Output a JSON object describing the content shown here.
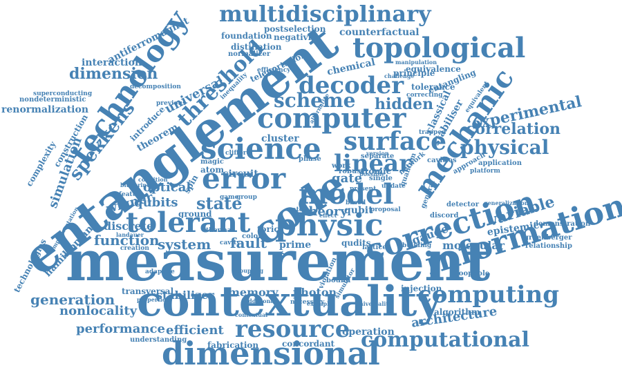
{
  "color": "#4682b4",
  "words": [
    {
      "id": "measurement",
      "text": "measurement"
    },
    {
      "id": "entanglement",
      "text": "entanglement"
    },
    {
      "id": "contextuality",
      "text": "contextuality"
    },
    {
      "id": "dimensional",
      "text": "dimensional"
    },
    {
      "id": "information",
      "text": "information"
    },
    {
      "id": "correction",
      "text": "correction"
    },
    {
      "id": "technology",
      "text": "technology"
    },
    {
      "id": "multidisciplinary",
      "text": "multidisciplinary"
    },
    {
      "id": "topological",
      "text": "topological"
    },
    {
      "id": "computer",
      "text": "computer"
    },
    {
      "id": "science",
      "text": "science"
    },
    {
      "id": "code",
      "text": "code"
    },
    {
      "id": "physic",
      "text": "physic"
    },
    {
      "id": "error",
      "text": "error"
    },
    {
      "id": "model",
      "text": "model"
    },
    {
      "id": "tolerant",
      "text": "tolerant"
    },
    {
      "id": "resource",
      "text": "resource"
    },
    {
      "id": "computing",
      "text": "computing"
    },
    {
      "id": "computational",
      "text": "computational"
    },
    {
      "id": "mechanic",
      "text": "mechanic"
    },
    {
      "id": "surface",
      "text": "surface"
    },
    {
      "id": "linear",
      "text": "linear"
    },
    {
      "id": "physical",
      "text": "physical"
    },
    {
      "id": "decoder",
      "text": "decoder"
    },
    {
      "id": "scheme",
      "text": "scheme"
    },
    {
      "id": "threshold",
      "text": "threshold"
    },
    {
      "id": "spekkens",
      "text": "spekkens"
    },
    {
      "id": "experimental",
      "text": "experimental"
    },
    {
      "id": "correlation",
      "text": "correlation"
    },
    {
      "id": "variable",
      "text": "variable"
    },
    {
      "id": "dimension",
      "text": "dimension"
    },
    {
      "id": "simulation",
      "text": "simulation"
    },
    {
      "id": "renormalization",
      "text": "renormalization"
    },
    {
      "id": "interaction",
      "text": "interaction"
    },
    {
      "id": "antiferromagnet",
      "text": "antiferromagnet"
    },
    {
      "id": "universal",
      "text": "universal"
    },
    {
      "id": "hidden",
      "text": "hidden"
    },
    {
      "id": "state",
      "text": "state"
    },
    {
      "id": "qubits",
      "text": "qubits"
    },
    {
      "id": "optical",
      "text": "optical"
    },
    {
      "id": "wigner",
      "text": "wigner"
    },
    {
      "id": "function",
      "text": "function"
    },
    {
      "id": "system",
      "text": "system"
    },
    {
      "id": "generation",
      "text": "generation"
    },
    {
      "id": "nonlocality",
      "text": "nonlocality"
    },
    {
      "id": "performance",
      "text": "performance"
    },
    {
      "id": "efficient",
      "text": "efficient"
    },
    {
      "id": "architecture",
      "text": "architecture"
    },
    {
      "id": "stabilizer",
      "text": "stabilizer"
    },
    {
      "id": "memory",
      "text": "memory"
    },
    {
      "id": "photon",
      "text": "photon"
    },
    {
      "id": "fault",
      "text": "fault"
    },
    {
      "id": "theory",
      "text": "theory"
    },
    {
      "id": "gate",
      "text": "gate"
    },
    {
      "id": "gauge",
      "text": "gauge"
    },
    {
      "id": "molecular",
      "text": "molecular"
    },
    {
      "id": "epistemic",
      "text": "epistemic"
    },
    {
      "id": "hamiltonian",
      "text": "hamiltonian"
    },
    {
      "id": "discrete",
      "text": "discrete"
    },
    {
      "id": "concordant",
      "text": "concordant"
    },
    {
      "id": "operation",
      "text": "operation"
    },
    {
      "id": "fabrication",
      "text": "fabrication"
    },
    {
      "id": "counterfactual",
      "text": "counterfactual"
    },
    {
      "id": "equivalence",
      "text": "equivalence"
    },
    {
      "id": "principle",
      "text": "principle"
    },
    {
      "id": "tolerance",
      "text": "tolerance"
    },
    {
      "id": "chemical",
      "text": "chemical"
    },
    {
      "id": "cluster",
      "text": "cluster"
    },
    {
      "id": "atomic",
      "text": "atomic"
    },
    {
      "id": "circuit",
      "text": "circuit"
    },
    {
      "id": "prime",
      "text": "prime"
    },
    {
      "id": "qubit",
      "text": "qubit"
    },
    {
      "id": "qudits",
      "text": "qudits"
    },
    {
      "id": "construction",
      "text": "construction"
    },
    {
      "id": "complexity",
      "text": "complexity"
    },
    {
      "id": "technologies",
      "text": "technologies"
    },
    {
      "id": "transversal",
      "text": "transversal"
    },
    {
      "id": "negativity",
      "text": "negativity"
    },
    {
      "id": "postselection",
      "text": "postselection"
    },
    {
      "id": "distillation",
      "text": "distillation"
    },
    {
      "id": "foundation",
      "text": "foundation"
    },
    {
      "id": "teleportation",
      "text": "teleportation"
    },
    {
      "id": "entangling",
      "text": "entangling"
    },
    {
      "id": "stabiliser",
      "text": "stabiliser"
    },
    {
      "id": "classical",
      "text": "classical"
    },
    {
      "id": "injection",
      "text": "injection"
    },
    {
      "id": "algorithm",
      "text": "algorithm"
    },
    {
      "id": "demonstration",
      "text": "demonstration"
    },
    {
      "id": "greenberger",
      "text": "greenberger"
    },
    {
      "id": "relationship",
      "text": "relationship"
    },
    {
      "id": "nondeterministic",
      "text": "nondeterministic"
    },
    {
      "id": "superconducting",
      "text": "superconducting"
    },
    {
      "id": "introduce",
      "text": "introduce"
    },
    {
      "id": "theorem",
      "text": "theorem"
    },
    {
      "id": "atom",
      "text": "atom"
    },
    {
      "id": "ground",
      "text": "ground"
    },
    {
      "id": "toric",
      "text": "toric"
    },
    {
      "id": "bound",
      "text": "bound"
    },
    {
      "id": "cavity",
      "text": "cavity"
    },
    {
      "id": "color",
      "text": "color"
    },
    {
      "id": "network",
      "text": "network"
    },
    {
      "id": "quantum",
      "text": "quantum"
    },
    {
      "id": "spin",
      "text": "spin"
    },
    {
      "id": "work",
      "text": "work"
    },
    {
      "id": "single",
      "text": "single"
    },
    {
      "id": "update",
      "text": "update"
    },
    {
      "id": "separate",
      "text": "separate"
    },
    {
      "id": "robust",
      "text": "robust"
    },
    {
      "id": "phase",
      "text": "phase"
    },
    {
      "id": "magic",
      "text": "magic"
    },
    {
      "id": "approach",
      "text": "approach"
    },
    {
      "id": "application",
      "text": "application"
    },
    {
      "id": "platform",
      "text": "platform"
    },
    {
      "id": "cavities",
      "text": "cavities"
    },
    {
      "id": "detector",
      "text": "detector"
    },
    {
      "id": "discord",
      "text": "discord"
    },
    {
      "id": "lattice",
      "text": "lattice"
    },
    {
      "id": "building",
      "text": "building"
    },
    {
      "id": "loophole",
      "text": "loophole"
    },
    {
      "id": "adaptive",
      "text": "adaptive"
    },
    {
      "id": "understanding",
      "text": "understanding"
    },
    {
      "id": "efficiency",
      "text": "efficiency"
    },
    {
      "id": "normalizer",
      "text": "normalizer"
    },
    {
      "id": "previous",
      "text": "previous"
    },
    {
      "id": "decomposition",
      "text": "decomposition"
    },
    {
      "id": "correcting",
      "text": "correcting"
    },
    {
      "id": "equivalent",
      "text": "equivalent"
    },
    {
      "id": "general",
      "text": "general"
    },
    {
      "id": "manipulation",
      "text": "manipulation"
    },
    {
      "id": "challenge",
      "text": "challenge"
    },
    {
      "id": "blueprint",
      "text": "blueprint"
    },
    {
      "id": "landauer",
      "text": "landauer"
    },
    {
      "id": "creation",
      "text": "creation"
    },
    {
      "id": "feature",
      "text": "feature"
    },
    {
      "id": "condition",
      "text": "condition"
    },
    {
      "id": "number",
      "text": "number"
    },
    {
      "id": "necessary",
      "text": "necessary"
    },
    {
      "id": "additional",
      "text": "additional"
    },
    {
      "id": "properties",
      "text": "properties"
    },
    {
      "id": "thermal",
      "text": "thermal"
    },
    {
      "id": "game",
      "text": "game"
    },
    {
      "id": "group",
      "text": "group"
    },
    {
      "id": "present",
      "text": "present"
    },
    {
      "id": "rate",
      "text": "rate"
    },
    {
      "id": "based",
      "text": "based"
    },
    {
      "id": "proposal",
      "text": "proposal"
    },
    {
      "id": "violation",
      "text": "violation"
    },
    {
      "id": "simulator",
      "text": "simulator"
    },
    {
      "id": "trapped",
      "text": "trapped"
    },
    {
      "id": "clifford",
      "text": "clifford"
    },
    {
      "id": "inequality",
      "text": "inequality"
    },
    {
      "id": "contextual",
      "text": "contextual"
    },
    {
      "id": "universality",
      "text": "universality"
    },
    {
      "id": "generalization",
      "text": "generalization"
    },
    {
      "id": "implementation",
      "text": "implementation"
    },
    {
      "id": "coupling",
      "text": "coupling"
    },
    {
      "id": "version",
      "text": "version"
    },
    {
      "id": "alternative",
      "text": "alternative"
    },
    {
      "id": "example",
      "text": "example"
    },
    {
      "id": "effect",
      "text": "effect"
    },
    {
      "id": "possible",
      "text": "possible"
    }
  ]
}
